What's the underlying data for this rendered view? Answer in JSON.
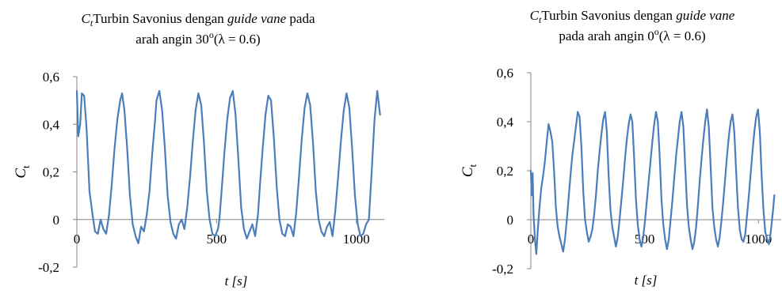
{
  "chart_data": [
    {
      "type": "line",
      "title_prefix": "C",
      "title_sub": "t",
      "title_part1": "Turbin Savonius dengan ",
      "title_italic": "guide vane",
      "title_part2": " pada",
      "title_line2": "arah angin 30",
      "title_sup": "o",
      "title_line2_end": "(λ = 0.6)",
      "ylabel": "C",
      "ylabel_sub": "t",
      "xlabel": "t [s]",
      "ylim": [
        -0.2,
        0.6
      ],
      "xlim": [
        0,
        1100
      ],
      "y_ticks": [
        "0,6",
        "0,4",
        "0,2",
        "0",
        "-0,2"
      ],
      "x_ticks": [
        "0",
        "500",
        "1000"
      ],
      "color": "#4a7ebb",
      "x": [
        0,
        5,
        12,
        18,
        26,
        35,
        45,
        55,
        65,
        75,
        85,
        95,
        105,
        115,
        125,
        135,
        145,
        155,
        162,
        170,
        180,
        190,
        200,
        210,
        220,
        230,
        240,
        250,
        260,
        270,
        280,
        285,
        295,
        305,
        315,
        325,
        335,
        345,
        355,
        365,
        375,
        385,
        395,
        405,
        415,
        425,
        435,
        445,
        455,
        465,
        475,
        485,
        495,
        505,
        510,
        518,
        528,
        538,
        548,
        558,
        568,
        578,
        588,
        598,
        608,
        618,
        628,
        638,
        648,
        655,
        665,
        675,
        685,
        695,
        705,
        715,
        725,
        735,
        745,
        755,
        765,
        775,
        785,
        795,
        805,
        815,
        825,
        835,
        845,
        855,
        865,
        875,
        885,
        895,
        905,
        915,
        925,
        935,
        945,
        955,
        965,
        975,
        985,
        995,
        1005,
        1015,
        1025,
        1035,
        1045,
        1055,
        1065,
        1075,
        1085
      ],
      "values": [
        0.54,
        0.35,
        0.4,
        0.53,
        0.52,
        0.38,
        0.12,
        0.03,
        -0.05,
        -0.06,
        0.0,
        -0.04,
        -0.06,
        0.02,
        0.15,
        0.3,
        0.42,
        0.5,
        0.53,
        0.46,
        0.3,
        0.1,
        -0.02,
        -0.07,
        -0.1,
        -0.03,
        -0.05,
        0.02,
        0.12,
        0.28,
        0.42,
        0.5,
        0.54,
        0.46,
        0.3,
        0.1,
        -0.01,
        -0.06,
        -0.08,
        -0.02,
        0.0,
        -0.04,
        0.05,
        0.18,
        0.33,
        0.46,
        0.53,
        0.48,
        0.32,
        0.12,
        0.0,
        -0.06,
        -0.07,
        -0.04,
        0.0,
        0.12,
        0.28,
        0.42,
        0.51,
        0.54,
        0.44,
        0.25,
        0.05,
        -0.04,
        -0.08,
        -0.05,
        -0.02,
        -0.07,
        0.02,
        0.14,
        0.3,
        0.44,
        0.52,
        0.5,
        0.34,
        0.14,
        0.0,
        -0.06,
        -0.07,
        -0.02,
        -0.03,
        -0.07,
        0.03,
        0.18,
        0.34,
        0.47,
        0.53,
        0.48,
        0.32,
        0.12,
        0.0,
        -0.05,
        -0.07,
        -0.03,
        -0.01,
        -0.07,
        0.04,
        0.18,
        0.33,
        0.46,
        0.53,
        0.47,
        0.3,
        0.1,
        -0.02,
        -0.07,
        -0.06,
        -0.02,
        0.0,
        0.2,
        0.42,
        0.54,
        0.44
      ]
    },
    {
      "type": "line",
      "title_prefix": "C",
      "title_sub": "t",
      "title_part1": "Turbin Savonius dengan ",
      "title_italic": "guide vane",
      "title_part2": "",
      "title_line2": "pada arah angin 0",
      "title_sup": "o",
      "title_line2_end": "(λ = 0.6)",
      "ylabel": "C",
      "ylabel_sub": "t",
      "xlabel": "t [s]",
      "ylim": [
        -0.2,
        0.6
      ],
      "xlim": [
        0,
        1100
      ],
      "y_ticks": [
        "0,6",
        "0,4",
        "0,2",
        "0",
        "-0,2"
      ],
      "x_ticks": [
        "0",
        "500",
        "1000"
      ],
      "color": "#4a7ebb",
      "x": [
        0,
        4,
        8,
        12,
        18,
        24,
        30,
        38,
        46,
        54,
        62,
        70,
        78,
        86,
        94,
        102,
        110,
        118,
        126,
        134,
        142,
        150,
        158,
        166,
        174,
        182,
        190,
        198,
        206,
        214,
        222,
        230,
        238,
        246,
        254,
        262,
        270,
        278,
        286,
        294,
        302,
        310,
        318,
        326,
        334,
        342,
        350,
        358,
        366,
        374,
        382,
        390,
        398,
        406,
        414,
        422,
        430,
        438,
        446,
        454,
        462,
        470,
        478,
        486,
        494,
        502,
        510,
        518,
        526,
        534,
        542,
        550,
        558,
        566,
        574,
        582,
        590,
        598,
        606,
        614,
        622,
        630,
        638,
        646,
        654,
        662,
        670,
        678,
        686,
        694,
        702,
        710,
        718,
        726,
        734,
        742,
        750,
        758,
        766,
        774,
        782,
        790,
        798,
        806,
        814,
        822,
        830,
        838,
        846,
        854,
        862,
        870,
        878,
        886,
        894,
        902,
        910,
        918,
        926,
        934,
        942,
        950,
        958,
        966,
        974,
        982,
        990,
        998,
        1006,
        1014,
        1022,
        1030,
        1038,
        1046,
        1054,
        1062,
        1070
      ],
      "values": [
        0.2,
        0.1,
        0.19,
        0.02,
        -0.08,
        -0.14,
        -0.05,
        0.05,
        0.13,
        0.18,
        0.24,
        0.32,
        0.39,
        0.36,
        0.32,
        0.2,
        0.05,
        -0.03,
        -0.07,
        -0.1,
        -0.13,
        -0.08,
        0.0,
        0.09,
        0.18,
        0.26,
        0.32,
        0.38,
        0.44,
        0.42,
        0.3,
        0.12,
        0.0,
        -0.05,
        -0.09,
        -0.07,
        -0.04,
        0.02,
        0.1,
        0.2,
        0.28,
        0.35,
        0.41,
        0.44,
        0.36,
        0.18,
        0.04,
        -0.03,
        -0.07,
        -0.11,
        -0.07,
        0.0,
        0.08,
        0.16,
        0.25,
        0.33,
        0.39,
        0.43,
        0.4,
        0.25,
        0.08,
        -0.02,
        -0.08,
        -0.11,
        -0.07,
        0.0,
        0.08,
        0.16,
        0.24,
        0.32,
        0.39,
        0.44,
        0.4,
        0.26,
        0.08,
        -0.02,
        -0.08,
        -0.12,
        -0.08,
        0.0,
        0.08,
        0.17,
        0.26,
        0.33,
        0.4,
        0.44,
        0.38,
        0.22,
        0.06,
        -0.03,
        -0.08,
        -0.12,
        -0.09,
        -0.03,
        0.06,
        0.16,
        0.25,
        0.33,
        0.4,
        0.45,
        0.38,
        0.22,
        0.05,
        -0.03,
        -0.08,
        -0.11,
        -0.07,
        0.0,
        0.08,
        0.17,
        0.26,
        0.34,
        0.4,
        0.43,
        0.36,
        0.2,
        0.05,
        -0.04,
        -0.08,
        -0.09,
        -0.06,
        0.02,
        0.1,
        0.19,
        0.28,
        0.36,
        0.42,
        0.45,
        0.36,
        0.18,
        0.04,
        -0.05,
        -0.08,
        -0.1,
        -0.05,
        0.02,
        0.1
      ]
    }
  ]
}
